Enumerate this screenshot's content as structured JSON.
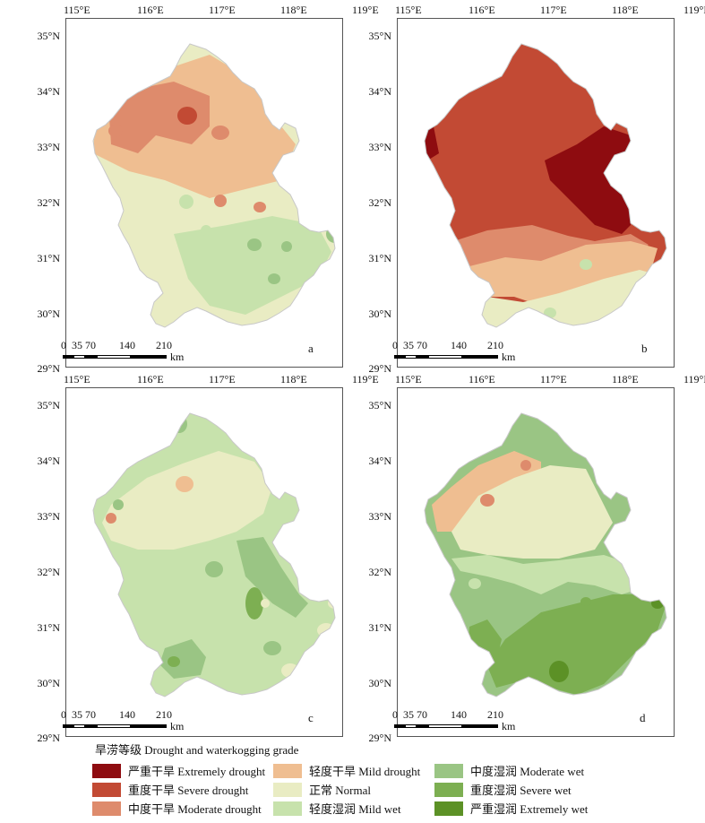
{
  "lon_ticks": [
    "115°E",
    "116°E",
    "117°E",
    "118°E",
    "119°E"
  ],
  "lat_ticks": [
    "35°N",
    "34°N",
    "33°N",
    "32°N",
    "31°N",
    "30°N",
    "29°N"
  ],
  "panels": [
    {
      "label": "a"
    },
    {
      "label": "b"
    },
    {
      "label": "c"
    },
    {
      "label": "d"
    }
  ],
  "scalebar": {
    "ticks": [
      "0",
      "35",
      "70",
      "140",
      "210"
    ],
    "unit": "km"
  },
  "legend": {
    "title": "旱涝等级 Drought and waterkogging grade",
    "items": [
      {
        "label": "严重干旱 Extremely drought",
        "color": "#8e0c10"
      },
      {
        "label": "重度干旱 Severe drought",
        "color": "#c24a34"
      },
      {
        "label": "中度干旱 Moderate drought",
        "color": "#de8b6c"
      },
      {
        "label": "轻度干旱 Mild drought",
        "color": "#efbe91"
      },
      {
        "label": "正常 Normal",
        "color": "#e9ecc3"
      },
      {
        "label": "轻度湿润 Mild wet",
        "color": "#c7e2ac"
      },
      {
        "label": "中度湿润 Moderate wet",
        "color": "#9ac584"
      },
      {
        "label": "重度湿润 Severe wet",
        "color": "#7daf52"
      },
      {
        "label": "严重湿润 Extremely wet",
        "color": "#5c9126"
      }
    ]
  }
}
